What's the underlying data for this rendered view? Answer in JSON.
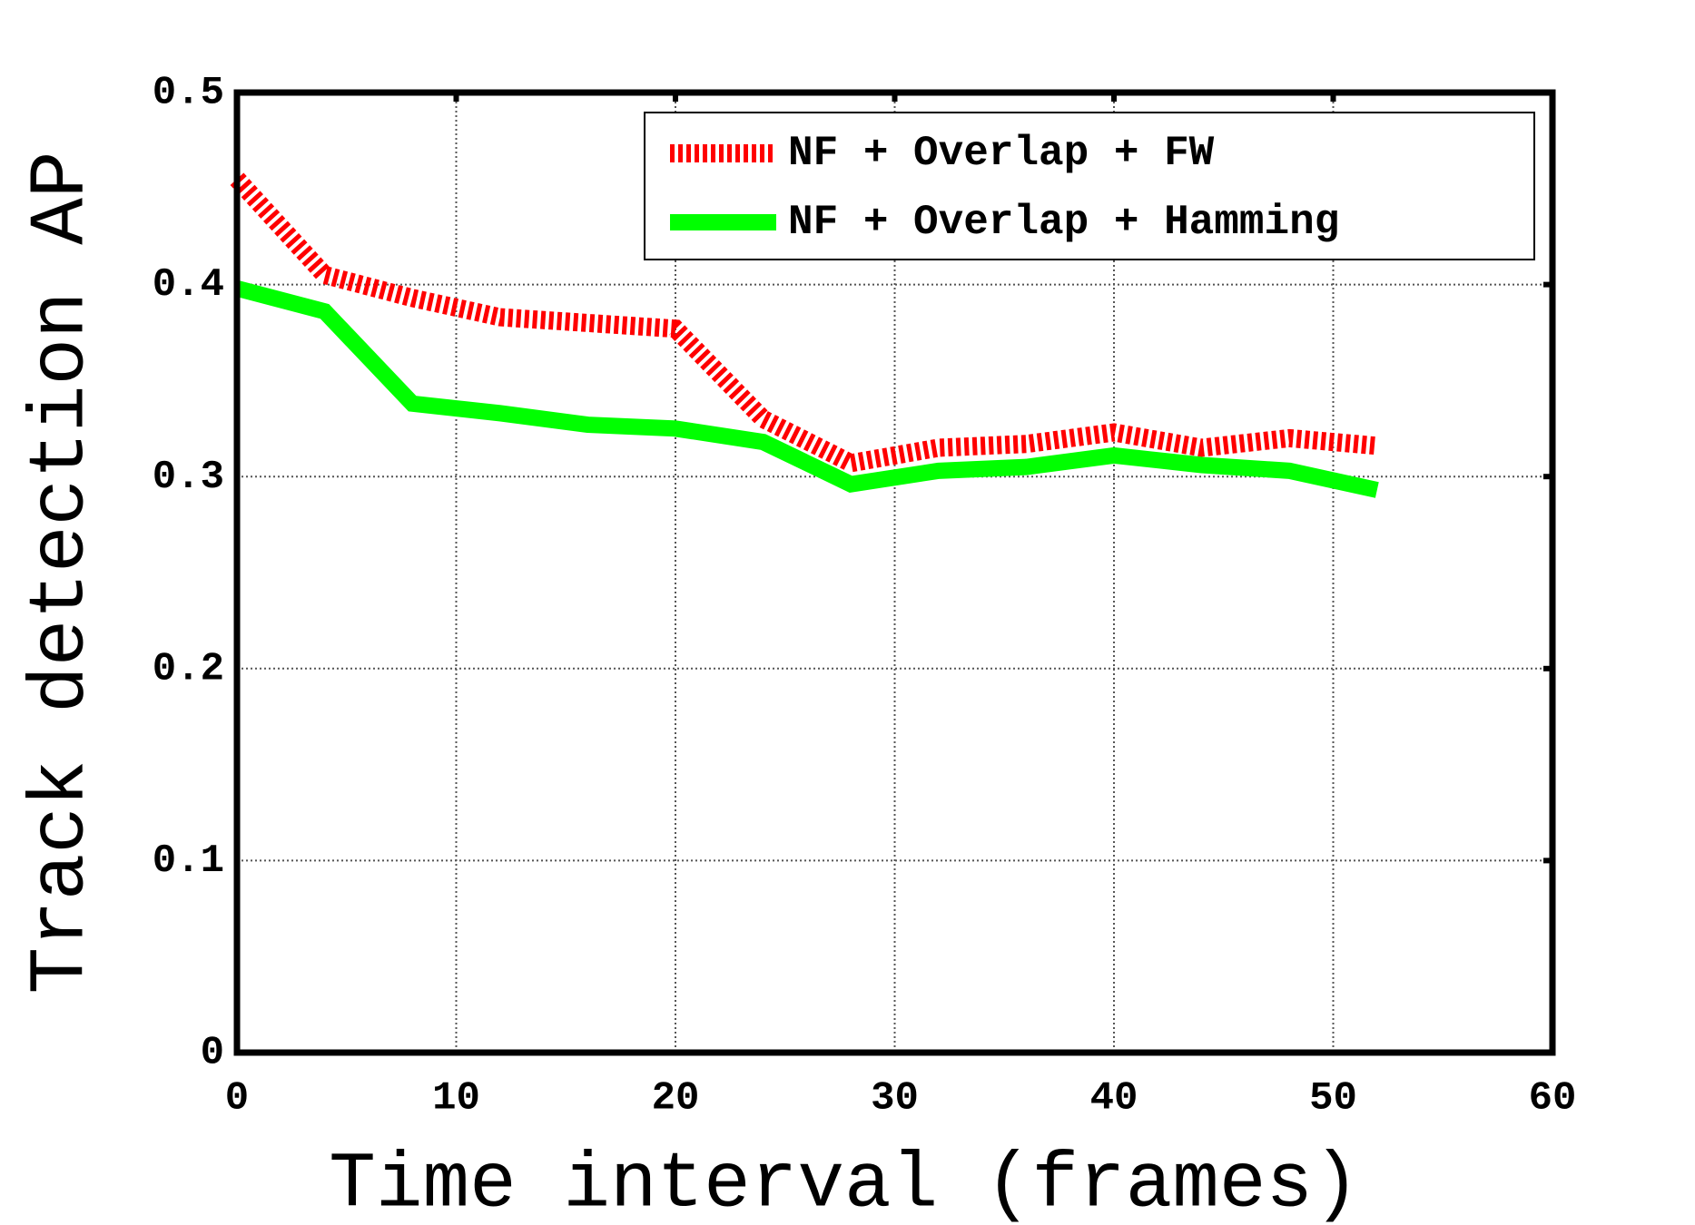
{
  "chart_data": {
    "type": "line",
    "x_label": "Time interval (frames)",
    "y_label": "Track detection AP",
    "x": [
      0,
      4,
      8,
      12,
      16,
      20,
      24,
      28,
      32,
      36,
      40,
      44,
      48,
      52
    ],
    "series": [
      {
        "name": "NF + Overlap + FW",
        "color": "#ff0000",
        "dashed": true,
        "values": [
          0.455,
          0.405,
          0.393,
          0.383,
          0.38,
          0.377,
          0.33,
          0.307,
          0.315,
          0.317,
          0.323,
          0.315,
          0.32,
          0.316
        ]
      },
      {
        "name": "NF + Overlap + Hamming",
        "color": "#00ff00",
        "dashed": false,
        "values": [
          0.398,
          0.386,
          0.338,
          0.333,
          0.327,
          0.325,
          0.318,
          0.296,
          0.303,
          0.305,
          0.311,
          0.306,
          0.303,
          0.293
        ]
      }
    ],
    "xlim": [
      0,
      60
    ],
    "xticks": [
      0,
      10,
      20,
      30,
      40,
      50,
      60
    ],
    "ylim": [
      0,
      0.5
    ],
    "yticks": [
      0,
      0.1,
      0.2,
      0.3,
      0.4,
      0.5
    ],
    "grid": true,
    "legend": "upper right"
  }
}
